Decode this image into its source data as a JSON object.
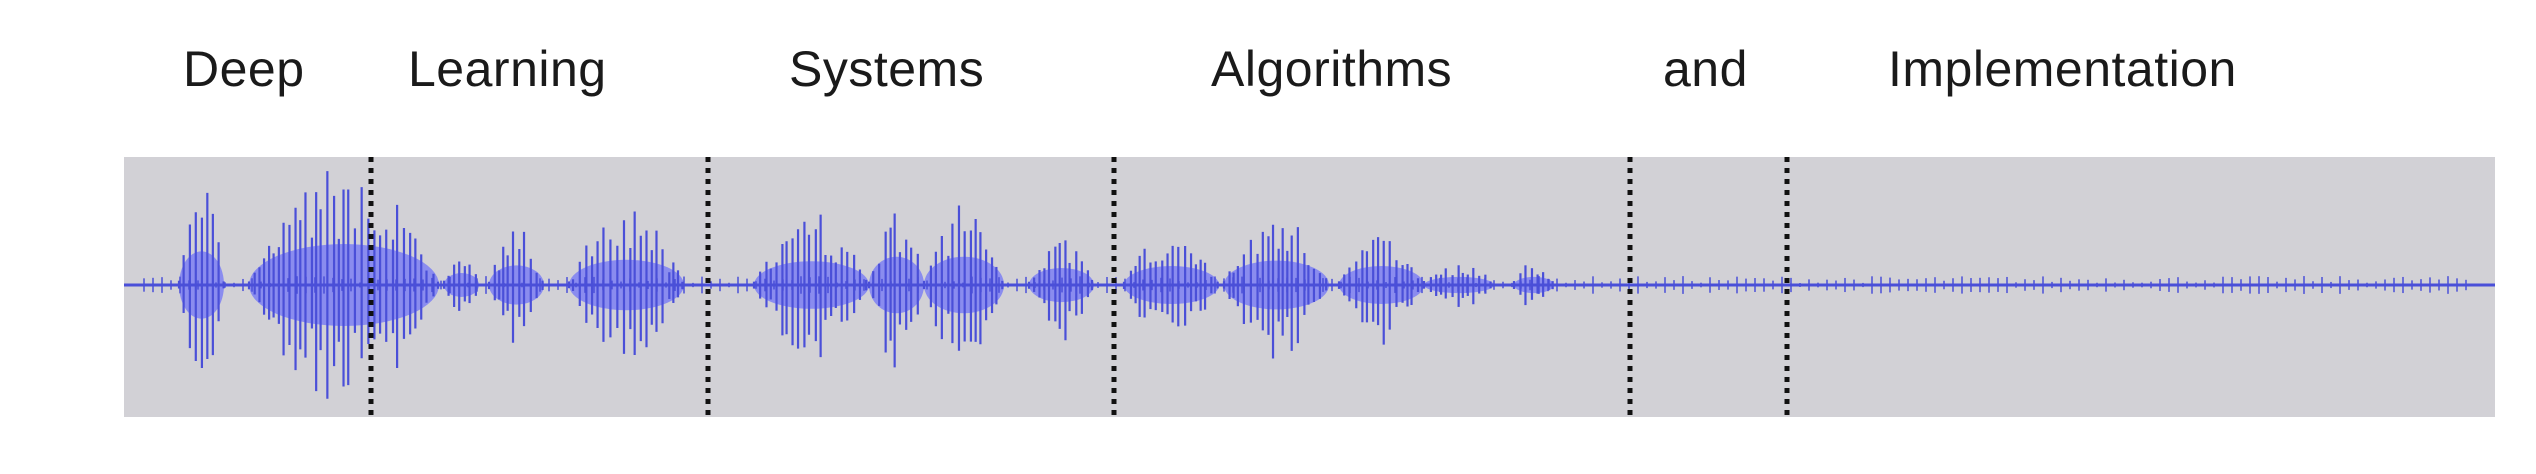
{
  "colors": {
    "panel_background": "#d2d1d6",
    "waveform_line": "#4a4fd8",
    "waveform_fill": "#8a8cef",
    "divider": "#111111"
  },
  "words": [
    {
      "text": "Deep"
    },
    {
      "text": "Learning"
    },
    {
      "text": "Systems"
    },
    {
      "text": "Algorithms"
    },
    {
      "text": "and"
    },
    {
      "text": "Implementation"
    }
  ],
  "segments": [
    {
      "word": "Deep",
      "shape": "burst",
      "energy": 0.75
    },
    {
      "word": "Learning",
      "shape": "swell",
      "energy": 0.95
    },
    {
      "word": "Systems",
      "shape": "double",
      "energy": 0.6
    },
    {
      "word": "Algorithms",
      "shape": "triple",
      "energy": 0.7
    },
    {
      "word": "and",
      "shape": "single",
      "energy": 0.5
    },
    {
      "word": "Implementation",
      "shape": "multi",
      "energy": 0.55
    }
  ]
}
